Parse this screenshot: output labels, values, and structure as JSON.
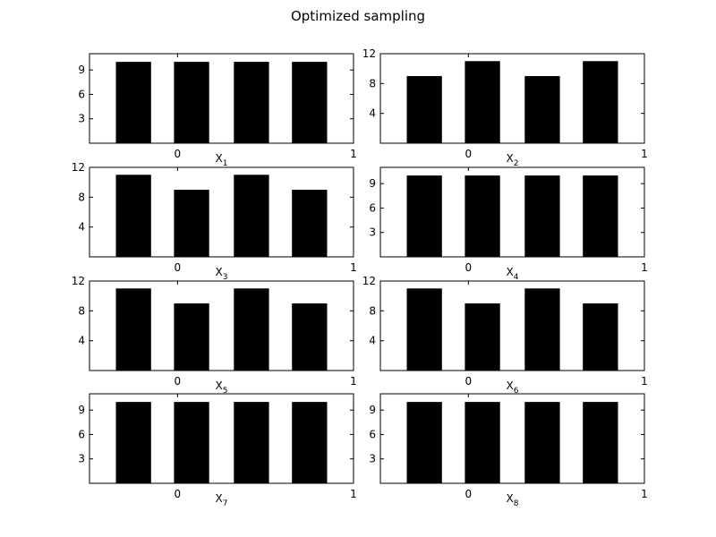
{
  "figure": {
    "title": "Optimized sampling",
    "colors": {
      "bar": "#000000",
      "background": "#ffffff",
      "axis": "#000000"
    }
  },
  "chart_data": [
    {
      "type": "bar",
      "xlabel": "X",
      "xlabel_sub": "1",
      "x": [
        -0.25,
        0.08,
        0.42,
        0.75
      ],
      "values": [
        10,
        10,
        10,
        10
      ],
      "xticks": [
        0,
        1
      ],
      "yticks": [
        3,
        6,
        9
      ],
      "xlim": [
        -0.5,
        1.0
      ],
      "ylim": [
        0,
        11
      ],
      "grid": false
    },
    {
      "type": "bar",
      "xlabel": "X",
      "xlabel_sub": "2",
      "x": [
        -0.25,
        0.08,
        0.42,
        0.75
      ],
      "values": [
        9,
        11,
        9,
        11
      ],
      "xticks": [
        0,
        1
      ],
      "yticks": [
        4,
        8,
        12
      ],
      "xlim": [
        -0.5,
        1.0
      ],
      "ylim": [
        0,
        12
      ],
      "grid": false
    },
    {
      "type": "bar",
      "xlabel": "X",
      "xlabel_sub": "3",
      "x": [
        -0.25,
        0.08,
        0.42,
        0.75
      ],
      "values": [
        11,
        9,
        11,
        9
      ],
      "xticks": [
        0,
        1
      ],
      "yticks": [
        4,
        8,
        12
      ],
      "xlim": [
        -0.5,
        1.0
      ],
      "ylim": [
        0,
        12
      ],
      "grid": false
    },
    {
      "type": "bar",
      "xlabel": "X",
      "xlabel_sub": "4",
      "x": [
        -0.25,
        0.08,
        0.42,
        0.75
      ],
      "values": [
        10,
        10,
        10,
        10
      ],
      "xticks": [
        0,
        1
      ],
      "yticks": [
        3,
        6,
        9
      ],
      "xlim": [
        -0.5,
        1.0
      ],
      "ylim": [
        0,
        11
      ],
      "grid": false
    },
    {
      "type": "bar",
      "xlabel": "X",
      "xlabel_sub": "5",
      "x": [
        -0.25,
        0.08,
        0.42,
        0.75
      ],
      "values": [
        11,
        9,
        11,
        9
      ],
      "xticks": [
        0,
        1
      ],
      "yticks": [
        4,
        8,
        12
      ],
      "xlim": [
        -0.5,
        1.0
      ],
      "ylim": [
        0,
        12
      ],
      "grid": false
    },
    {
      "type": "bar",
      "xlabel": "X",
      "xlabel_sub": "6",
      "x": [
        -0.25,
        0.08,
        0.42,
        0.75
      ],
      "values": [
        11,
        9,
        11,
        9
      ],
      "xticks": [
        0,
        1
      ],
      "yticks": [
        4,
        8,
        12
      ],
      "xlim": [
        -0.5,
        1.0
      ],
      "ylim": [
        0,
        12
      ],
      "grid": false
    },
    {
      "type": "bar",
      "xlabel": "X",
      "xlabel_sub": "7",
      "x": [
        -0.25,
        0.08,
        0.42,
        0.75
      ],
      "values": [
        10,
        10,
        10,
        10
      ],
      "xticks": [
        0,
        1
      ],
      "yticks": [
        3,
        6,
        9
      ],
      "xlim": [
        -0.5,
        1.0
      ],
      "ylim": [
        0,
        11
      ],
      "grid": false
    },
    {
      "type": "bar",
      "xlabel": "X",
      "xlabel_sub": "8",
      "x": [
        -0.25,
        0.08,
        0.42,
        0.75
      ],
      "values": [
        10,
        10,
        10,
        10
      ],
      "xticks": [
        0,
        1
      ],
      "yticks": [
        3,
        6,
        9
      ],
      "xlim": [
        -0.5,
        1.0
      ],
      "ylim": [
        0,
        11
      ],
      "grid": false
    }
  ]
}
